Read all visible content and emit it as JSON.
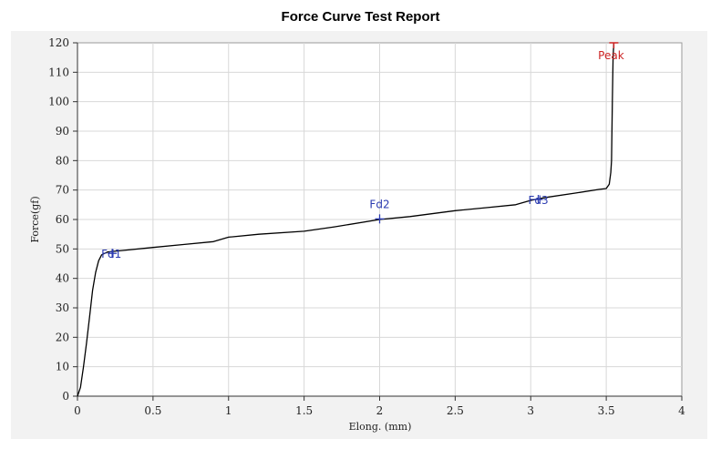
{
  "chart_data": {
    "type": "line",
    "title": "Force Curve Test Report",
    "xlabel": "Elong. (mm)",
    "ylabel": "Force(gf)",
    "xlim": [
      0,
      4
    ],
    "ylim": [
      0,
      120
    ],
    "x_ticks": [
      "0",
      "0.5",
      "1",
      "1.5",
      "2",
      "2.5",
      "3",
      "3.5",
      "4"
    ],
    "y_ticks": [
      "0",
      "10",
      "20",
      "30",
      "40",
      "50",
      "60",
      "70",
      "80",
      "90",
      "100",
      "110",
      "120"
    ],
    "grid": true,
    "series": [
      {
        "color": "#000000",
        "x": [
          0,
          0.02,
          0.04,
          0.06,
          0.08,
          0.1,
          0.12,
          0.14,
          0.16,
          0.18,
          0.2,
          0.3,
          0.5,
          0.7,
          0.9,
          1.0,
          1.2,
          1.5,
          1.7,
          2.0,
          2.2,
          2.5,
          2.7,
          2.9,
          3.0,
          3.1,
          3.3,
          3.45,
          3.5,
          3.52,
          3.53,
          3.535,
          3.54,
          3.545,
          3.55
        ],
        "y": [
          0,
          3,
          10,
          18,
          27,
          36,
          42,
          46,
          48,
          48.5,
          49,
          49.5,
          50.5,
          51.5,
          52.5,
          54,
          55,
          56,
          57.5,
          60,
          61,
          63,
          64,
          65,
          66.5,
          67.5,
          69,
          70.2,
          70.5,
          72,
          76,
          80,
          100,
          115,
          120
        ]
      }
    ],
    "markers": [
      {
        "label": "Fd1",
        "x": 0.23,
        "y": 48.5,
        "color": "#2b3bb0"
      },
      {
        "label": "Fd2",
        "x": 2.0,
        "y": 60.2,
        "color": "#2b3bb0"
      },
      {
        "label": "Fd3",
        "x": 3.05,
        "y": 66.8,
        "color": "#2b3bb0"
      },
      {
        "label": "Peak",
        "x": 3.55,
        "y": 120,
        "color": "#cc2222"
      }
    ]
  }
}
